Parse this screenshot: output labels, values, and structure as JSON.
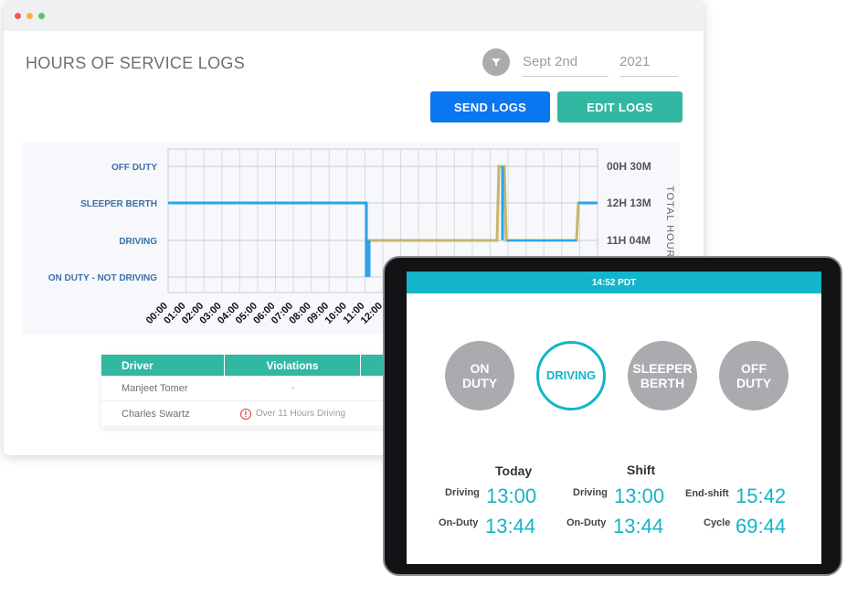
{
  "window": {
    "title": "HOURS OF SERVICE LOGS",
    "date_day": "Sept 2nd",
    "date_year": "2021",
    "send_label": "SEND LOGS",
    "edit_label": "EDIT LOGS"
  },
  "chart": {
    "statuses": [
      "OFF DUTY",
      "SLEEPER BERTH",
      "DRIVING",
      "ON DUTY - NOT DRIVING"
    ],
    "totals": [
      "00H 30M",
      "12H 13M",
      "11H 04M",
      ""
    ],
    "right_label": "TOTAL HOUR",
    "hours": [
      "00:00",
      "01:00",
      "02:00",
      "03:00",
      "04:00",
      "05:00",
      "06:00",
      "07:00",
      "08:00",
      "09:00",
      "10:00",
      "11:00",
      "12:00"
    ],
    "colors": {
      "blue": "#2ba4ec",
      "gold": "#c7b56a"
    }
  },
  "table": {
    "headers": [
      "Driver",
      "Violations",
      ""
    ],
    "rows": [
      {
        "driver": "Manjeet Tomer",
        "violation": "-"
      },
      {
        "driver": "Charles Swartz",
        "violation": "Over 11 Hours Driving"
      }
    ]
  },
  "tablet": {
    "time": "14:52 PDT",
    "status_on_duty": "ON\nDUTY",
    "status_driving": "DRIVING",
    "status_sleeper": "SLEEPER\nBERTH",
    "status_off_duty": "OFF\nDUTY",
    "today_title": "Today",
    "shift_title": "Shift",
    "today": {
      "driving_label": "Driving",
      "driving": "13:00",
      "onduty_label": "On-Duty",
      "onduty": "13:44"
    },
    "shift": {
      "driving_label": "Driving",
      "driving": "13:00",
      "onduty_label": "On-Duty",
      "onduty": "13:44"
    },
    "extra": {
      "endshift_label": "End-shift",
      "endshift": "15:42",
      "cycle_label": "Cycle",
      "cycle": "69:44"
    },
    "accent": "#12b5c9"
  }
}
